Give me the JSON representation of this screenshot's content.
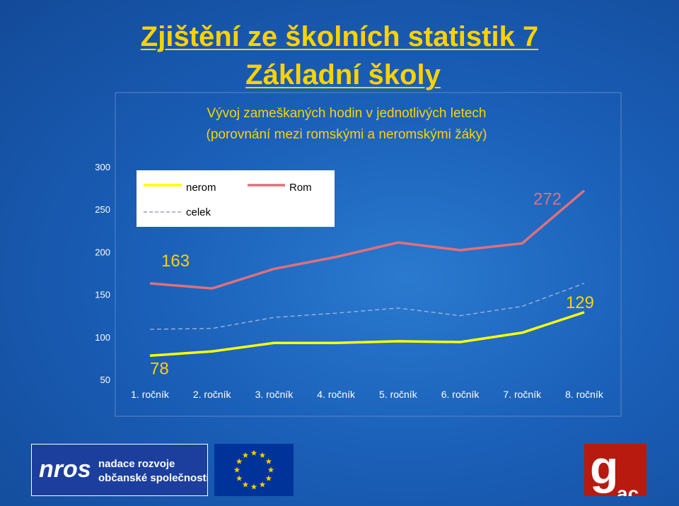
{
  "slide": {
    "title_line1": "Zjištění ze školních statistik 7",
    "title_line2": "Základní školy"
  },
  "chart_data": {
    "type": "line",
    "title_line1": "Vývoj zameškaných hodin v jednotlivých letech",
    "title_line2": "(porovnání mezi romskými a neromskými žáky)",
    "categories": [
      "1. ročník",
      "2. ročník",
      "3. ročník",
      "4. ročník",
      "5. ročník",
      "6. ročník",
      "7. ročník",
      "8. ročník"
    ],
    "yticks": [
      "50",
      "100",
      "150",
      "200",
      "250",
      "300"
    ],
    "ylim": [
      50,
      300
    ],
    "grid": false,
    "legend_position": "top-left",
    "series": [
      {
        "name": "nerom",
        "color": "#ffff00",
        "style": "solid",
        "values": [
          78,
          83,
          93,
          93,
          95,
          94,
          105,
          129
        ]
      },
      {
        "name": "Rom",
        "color": "#e0707a",
        "style": "solid",
        "values": [
          163,
          157,
          180,
          194,
          211,
          202,
          210,
          272
        ]
      },
      {
        "name": "celek",
        "color": "#a8b8d8",
        "style": "dashed",
        "values": [
          109,
          110,
          123,
          128,
          134,
          125,
          136,
          163
        ]
      }
    ],
    "data_labels": [
      {
        "text": "163",
        "series": "Rom",
        "index": 0
      },
      {
        "text": "272",
        "series": "Rom",
        "index": 7
      },
      {
        "text": "78",
        "series": "nerom",
        "index": 0
      },
      {
        "text": "129",
        "series": "nerom",
        "index": 7
      }
    ]
  },
  "logos": {
    "nros_mark": "nros",
    "nros_text_line1": "nadace rozvoje",
    "nros_text_line2": "občanské společnosti",
    "gac_mark": "g",
    "gac_sub": "ac",
    "eu_icon": "eu-flag-stars"
  }
}
